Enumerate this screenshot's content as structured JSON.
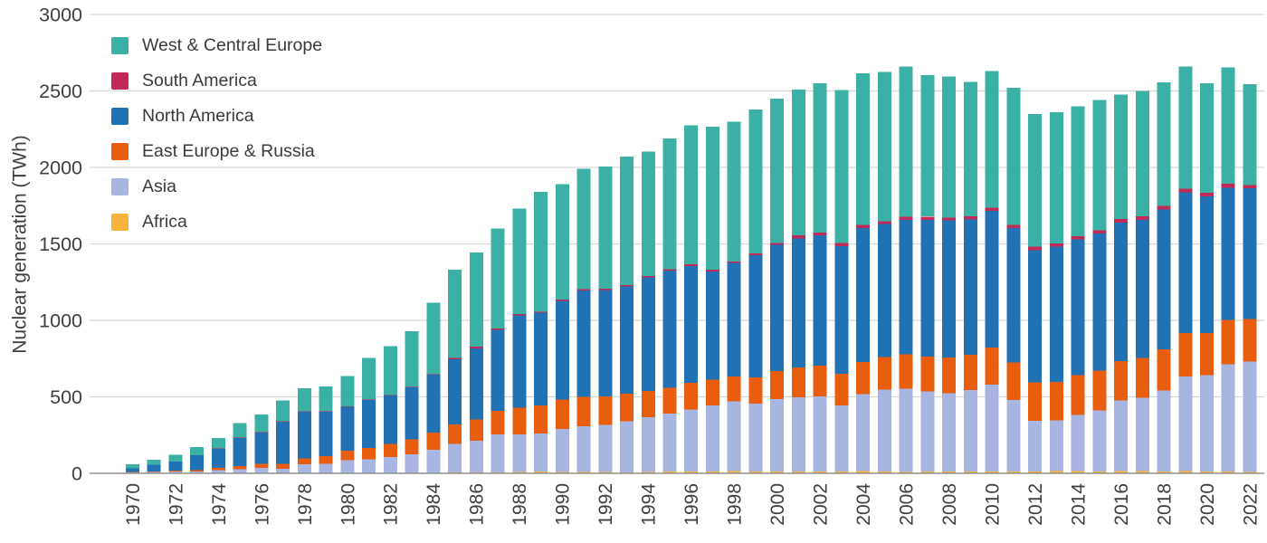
{
  "chart_data": {
    "type": "bar",
    "stacked": true,
    "title": "",
    "xlabel": "",
    "ylabel": "Nuclear generation (TWh)",
    "ylim": [
      0,
      3000
    ],
    "yticks": [
      0,
      500,
      1000,
      1500,
      2000,
      2500,
      3000
    ],
    "grid": "horizontal",
    "x": [
      1970,
      1971,
      1972,
      1973,
      1974,
      1975,
      1976,
      1977,
      1978,
      1979,
      1980,
      1981,
      1982,
      1983,
      1984,
      1985,
      1986,
      1987,
      1988,
      1989,
      1990,
      1991,
      1992,
      1993,
      1994,
      1995,
      1996,
      1997,
      1998,
      1999,
      2000,
      2001,
      2002,
      2003,
      2004,
      2005,
      2006,
      2007,
      2008,
      2009,
      2010,
      2011,
      2012,
      2013,
      2014,
      2015,
      2016,
      2017,
      2018,
      2019,
      2020,
      2021,
      2022
    ],
    "x_tick_labels": [
      "1970",
      "1972",
      "1974",
      "1976",
      "1978",
      "1980",
      "1982",
      "1984",
      "1986",
      "1988",
      "1990",
      "1992",
      "1994",
      "1996",
      "1998",
      "2000",
      "2002",
      "2004",
      "2006",
      "2008",
      "2010",
      "2012",
      "2014",
      "2016",
      "2018",
      "2020",
      "2022"
    ],
    "series": [
      {
        "name": "Africa",
        "color": "#F8B33C",
        "values": [
          0,
          0,
          0,
          0,
          0,
          0,
          0,
          0,
          0,
          0,
          0,
          0,
          0,
          0,
          4,
          6,
          7,
          6,
          10,
          11,
          8,
          9,
          9,
          7,
          10,
          11,
          12,
          13,
          14,
          13,
          13,
          11,
          12,
          13,
          14,
          12,
          10,
          13,
          13,
          12,
          13,
          13,
          12,
          14,
          15,
          11,
          15,
          15,
          11,
          14,
          12,
          12,
          10
        ]
      },
      {
        "name": "Asia",
        "color": "#A9B5E1",
        "values": [
          5,
          8,
          11,
          12,
          21,
          27,
          36,
          31,
          58,
          63,
          85,
          93,
          108,
          123,
          150,
          185,
          205,
          248,
          243,
          248,
          281,
          298,
          308,
          332,
          358,
          380,
          405,
          430,
          455,
          443,
          472,
          487,
          491,
          432,
          503,
          534,
          544,
          522,
          512,
          533,
          568,
          465,
          330,
          333,
          368,
          400,
          460,
          478,
          530,
          620,
          630,
          700,
          720
        ]
      },
      {
        "name": "East Europe & Russia",
        "color": "#E95D0E",
        "values": [
          4,
          5,
          6,
          9,
          14,
          20,
          25,
          32,
          40,
          48,
          62,
          73,
          83,
          99,
          112,
          130,
          141,
          155,
          175,
          186,
          192,
          193,
          185,
          183,
          170,
          168,
          175,
          170,
          165,
          172,
          185,
          195,
          200,
          205,
          212,
          215,
          223,
          228,
          232,
          230,
          241,
          248,
          253,
          251,
          258,
          262,
          260,
          262,
          270,
          282,
          274,
          290,
          278
        ]
      },
      {
        "name": "North America",
        "color": "#2171B5",
        "values": [
          24,
          42,
          60,
          98,
          127,
          186,
          207,
          275,
          305,
          291,
          288,
          312,
          320,
          341,
          378,
          425,
          465,
          529,
          606,
          605,
          647,
          694,
          696,
          701,
          743,
          766,
          764,
          707,
          742,
          799,
          824,
          842,
          852,
          836,
          875,
          870,
          881,
          895,
          896,
          885,
          894,
          879,
          865,
          884,
          890,
          894,
          905,
          903,
          915,
          920,
          895,
          866,
          855
        ]
      },
      {
        "name": "South America",
        "color": "#C12A56",
        "values": [
          0,
          0,
          0,
          0,
          1,
          2,
          2,
          2,
          3,
          3,
          2,
          3,
          2,
          3,
          5,
          9,
          10,
          9,
          6,
          6,
          9,
          9,
          9,
          8,
          8,
          10,
          10,
          11,
          10,
          10,
          11,
          21,
          20,
          21,
          21,
          16,
          21,
          21,
          20,
          20,
          21,
          20,
          21,
          20,
          20,
          21,
          22,
          22,
          24,
          24,
          24,
          25,
          23
        ]
      },
      {
        "name": "West & Central Europe",
        "color": "#3BB1A5",
        "values": [
          26,
          33,
          43,
          53,
          69,
          92,
          114,
          135,
          149,
          163,
          198,
          274,
          317,
          364,
          466,
          575,
          617,
          653,
          690,
          784,
          753,
          787,
          798,
          839,
          816,
          855,
          909,
          934,
          914,
          943,
          945,
          954,
          975,
          998,
          990,
          978,
          981,
          926,
          922,
          880,
          893,
          895,
          869,
          858,
          849,
          852,
          813,
          820,
          805,
          800,
          715,
          762,
          659
        ]
      }
    ],
    "legend": {
      "position": "top-left",
      "entries": [
        {
          "label": "West & Central Europe",
          "color": "#3BB1A5"
        },
        {
          "label": "South America",
          "color": "#C12A56"
        },
        {
          "label": "North America",
          "color": "#2171B5"
        },
        {
          "label": "East Europe & Russia",
          "color": "#E95D0E"
        },
        {
          "label": "Asia",
          "color": "#A9B5E1"
        },
        {
          "label": "Africa",
          "color": "#F8B33C"
        }
      ]
    },
    "colors": {
      "gridline": "#D8D8D8",
      "axis_line": "#8F8F8F",
      "tick_text": "#3E3E3E"
    }
  }
}
